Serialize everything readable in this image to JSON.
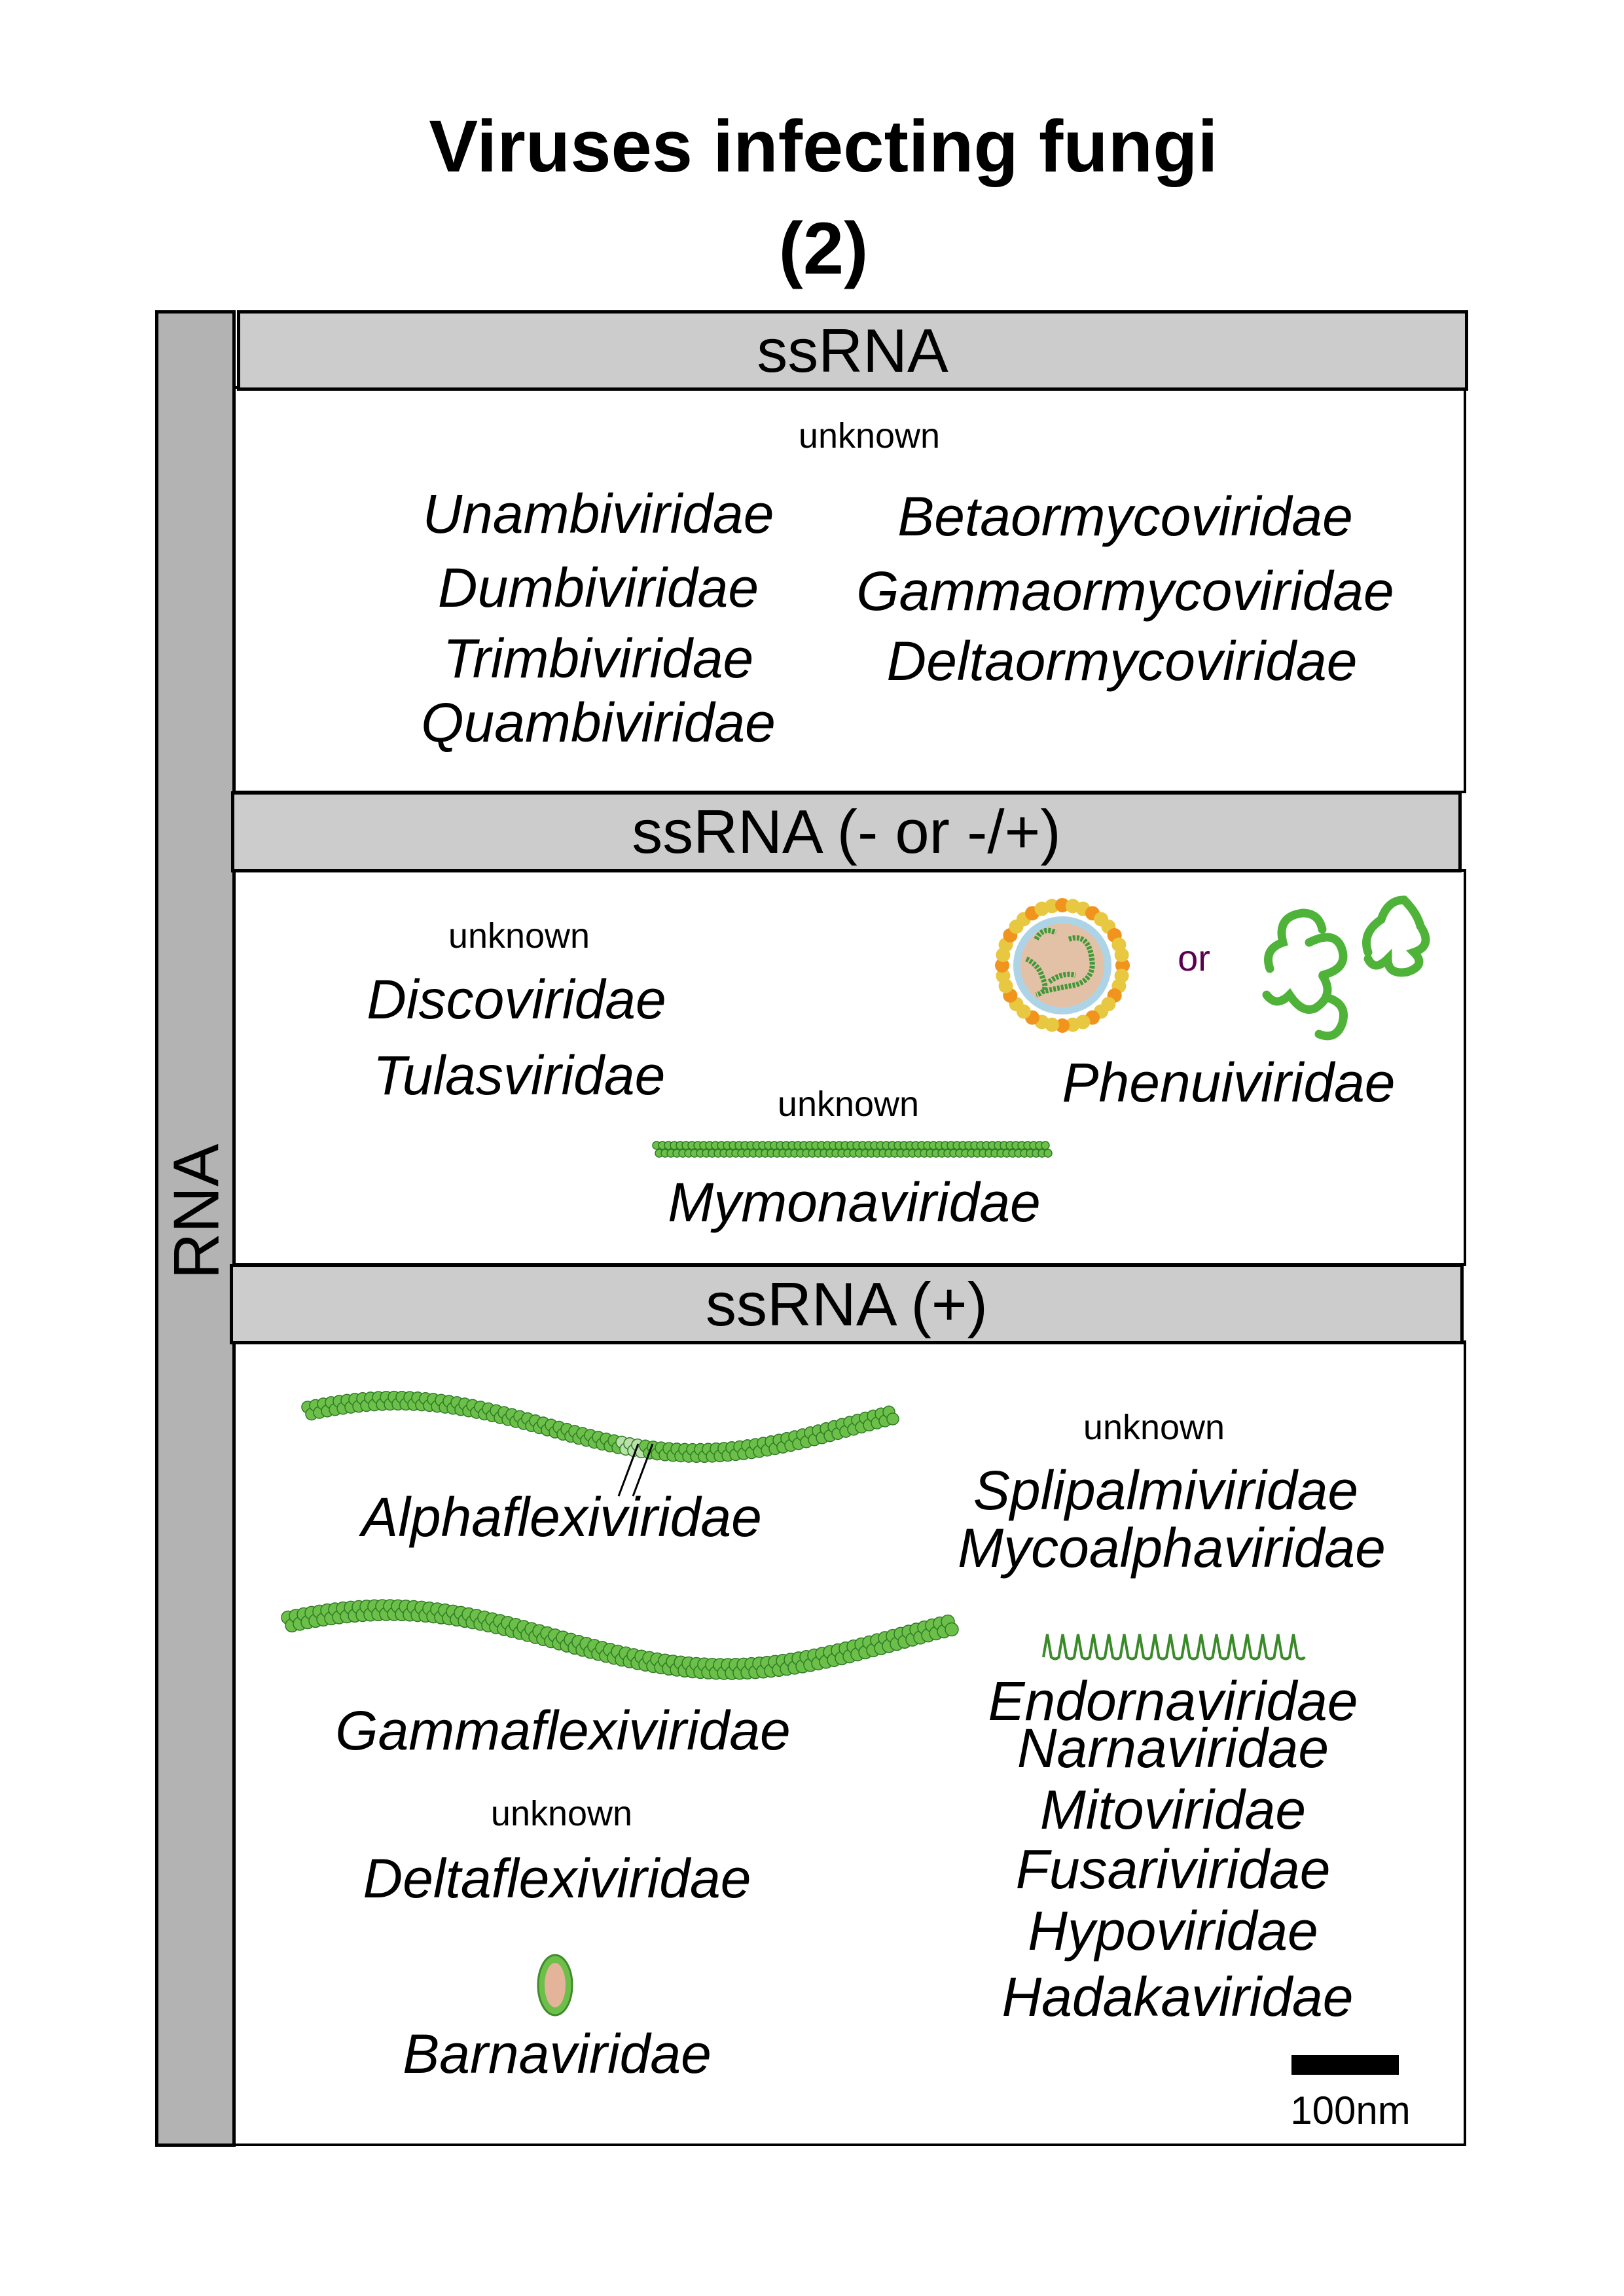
{
  "title": {
    "line1": "Viruses infecting fungi",
    "line2": "(2)"
  },
  "side_label": "RNA",
  "sections": {
    "ssrna": {
      "header": "ssRNA",
      "unknown_label": "unknown",
      "left_families": [
        "Unambiviridae",
        "Dumbiviridae",
        "Trimbiviridae",
        "Quambiviridae"
      ],
      "right_families": [
        "Betaormycoviridae",
        "Gammaormycoviridae",
        "Deltaormycoviridae"
      ]
    },
    "ssrna_neg": {
      "header": "ssRNA (- or -/+)",
      "unknown_label_1": "unknown",
      "families_unknown": [
        "Discoviridae",
        "Tulasviridae"
      ],
      "unknown_label_2": "unknown",
      "mymona": "Mymonaviridae",
      "or_label": "or",
      "phenui": "Phenuiviridae"
    },
    "ssrna_pos": {
      "header": "ssRNA (+)",
      "alpha": "Alphaflexiviridae",
      "gamma": "Gammaflexiviridae",
      "unknown_label_delta": "unknown",
      "delta": "Deltaflexiviridae",
      "barna": "Barnaviridae",
      "unknown_label_right": "unknown",
      "right_unknown": [
        "Splipalmiviridae",
        "Mycoalphaviridae"
      ],
      "right_naked": [
        "Endornaviridae",
        "Narnaviridae",
        "Mitoviridae",
        "Fusariviridae",
        "Hypoviridae",
        "Hadakaviridae"
      ]
    }
  },
  "scale_bar": {
    "label": "100nm"
  },
  "colors": {
    "header_fill": "#cccccc",
    "side_fill": "#b3b3b3",
    "capsid_green": "#5cbf3c",
    "or_text": "#5a0050",
    "envelope_yellow": "#e8c840",
    "core": "#e3c1a6"
  }
}
